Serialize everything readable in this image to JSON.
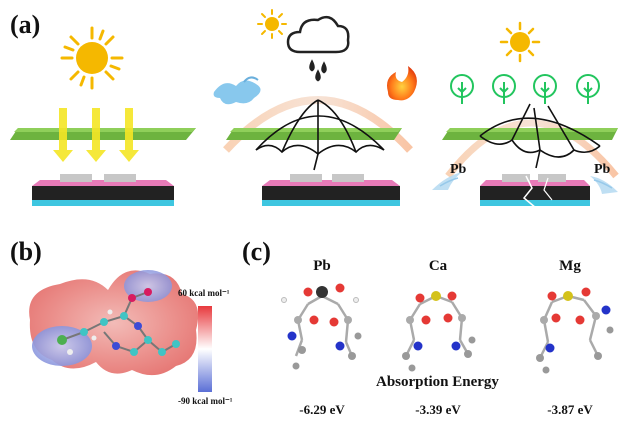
{
  "panels": {
    "a": "(a)",
    "b": "(b)",
    "c": "(c)"
  },
  "panel_a": {
    "leak_label_left": "Pb",
    "leak_label_right": "Pb"
  },
  "panel_b": {
    "scale_max": "60 kcal mol⁻¹",
    "scale_min": "-90 kcal mol⁻¹",
    "colors": {
      "positive": "#e8393d",
      "neutral": "#ffffff",
      "negative": "#5b6fd6"
    }
  },
  "panel_c": {
    "title": "Absorption Energy",
    "molecules": [
      {
        "element": "Pb",
        "energy": "-6.29 eV",
        "center_color": "#333333"
      },
      {
        "element": "Ca",
        "energy": "-3.39 eV",
        "center_color": "#d4c21a"
      },
      {
        "element": "Mg",
        "energy": "-3.87 eV",
        "center_color": "#d4c21a"
      }
    ]
  },
  "colors": {
    "sun": "#f5b800",
    "glass": "#6db33f",
    "arrow": "#f5e625",
    "device_top": "#e77bb8",
    "device_body": "#222222",
    "device_base": "#3ec6e0",
    "tree": "#22c55e"
  }
}
